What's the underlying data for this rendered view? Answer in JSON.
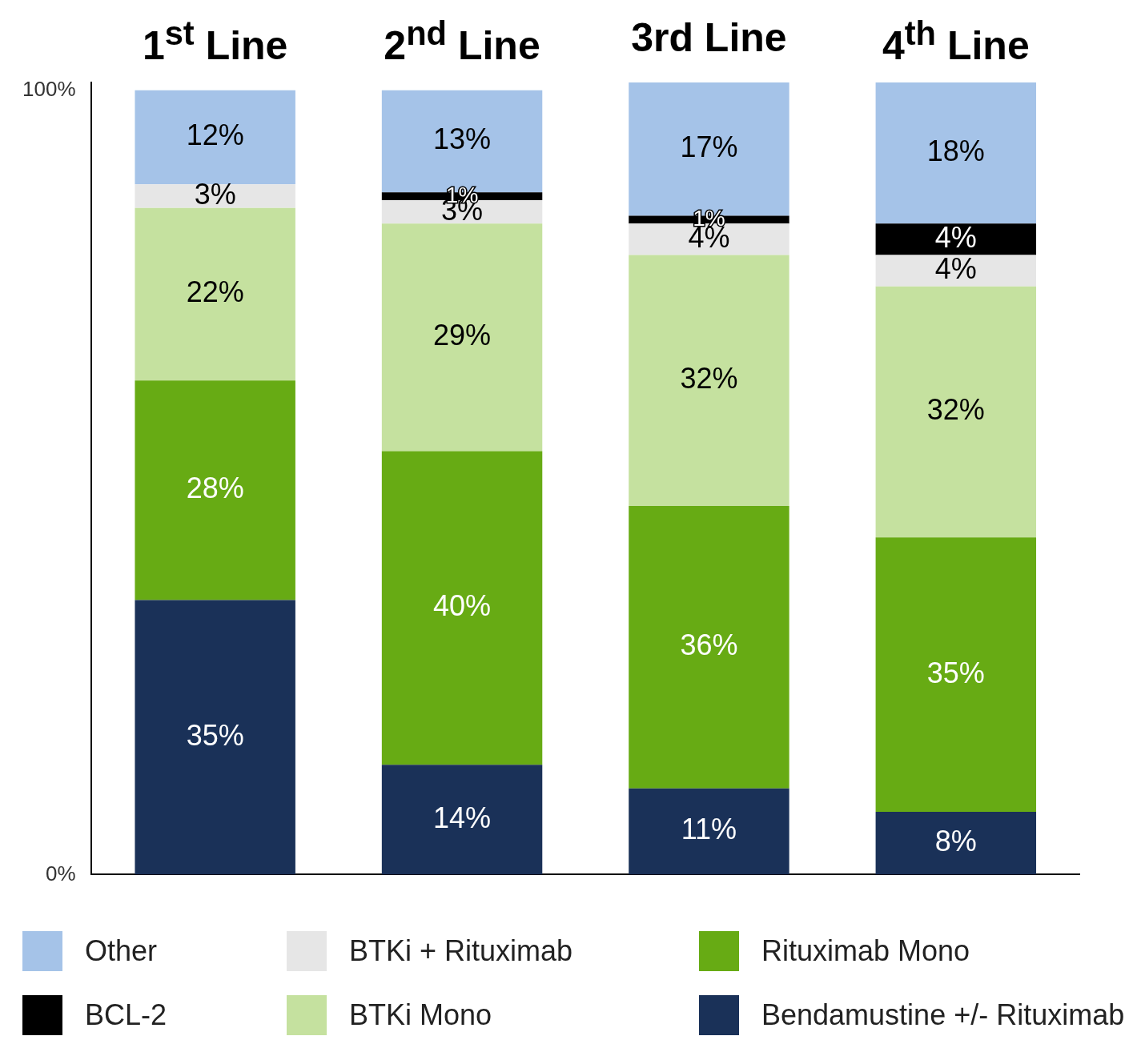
{
  "chart_data": {
    "type": "bar",
    "stacked": true,
    "categories": [
      "1$^{st}$ Line",
      "2$^{nd}$ Line",
      "3rd Line",
      "4$^{th}$ Line"
    ],
    "series": [
      {
        "name": "Bendamustine +/- Rituximab",
        "color": "#1a3158",
        "values": [
          35,
          14,
          11,
          8
        ],
        "value_labels": [
          "35%",
          "14%",
          "11%",
          "8%"
        ]
      },
      {
        "name": "Rituximab Mono",
        "color": "#67ab14",
        "values": [
          28,
          40,
          36,
          35
        ],
        "value_labels": [
          "28%",
          "40%",
          "36%",
          "35%"
        ]
      },
      {
        "name": "BTKi Mono",
        "color": "#c5e19f",
        "values": [
          22,
          29,
          32,
          32
        ],
        "value_labels": [
          "22%",
          "29%",
          "32%",
          "32%"
        ]
      },
      {
        "name": "BTKi + Rituximab",
        "color": "#e6e6e6",
        "values": [
          3,
          3,
          4,
          4
        ],
        "value_labels": [
          "3%",
          "3%",
          "4%",
          "4%"
        ]
      },
      {
        "name": "BCL-2",
        "color": "#000000",
        "values": [
          null,
          1,
          1,
          4
        ],
        "value_labels": [
          null,
          "1%",
          "1%",
          "4%"
        ]
      },
      {
        "name": "Other",
        "color": "#a5c3e8",
        "values": [
          12,
          13,
          17,
          18
        ],
        "value_labels": [
          "12%",
          "13%",
          "17%",
          "18%"
        ]
      }
    ],
    "ylim": [
      0,
      101
    ],
    "yticks": [
      {
        "value": 0,
        "label": "0%"
      },
      {
        "value": 100,
        "label": "100%"
      }
    ],
    "grid": false,
    "legend": "bottom"
  }
}
